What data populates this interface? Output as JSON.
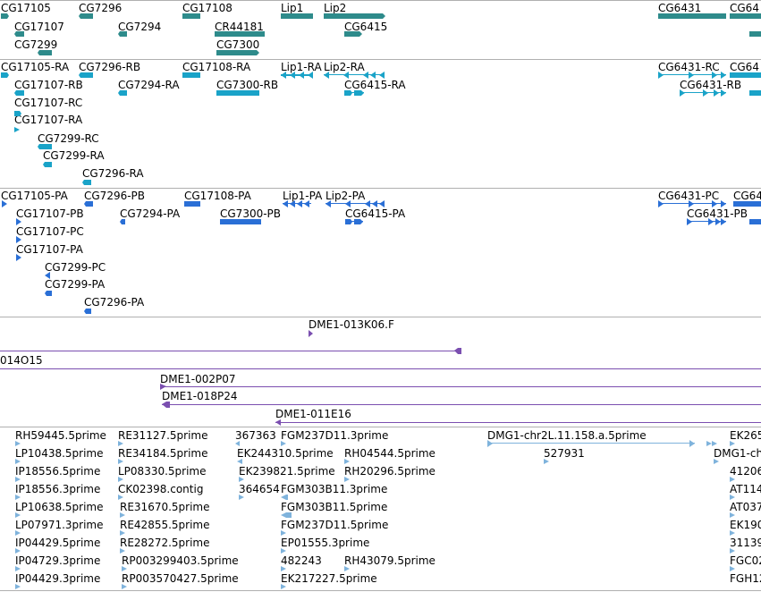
{
  "colors": {
    "gene": "#2e8b8b",
    "mrna": "#1aa3c8",
    "protein": "#2a6fd6",
    "clone": "#7b4fb0",
    "est": "#7fb3dc",
    "separator": "#b0b0b0"
  },
  "genes": {
    "labels": [
      "CG17105",
      "CG7296",
      "CG17108",
      "Lip1",
      "Lip2",
      "CG6431",
      "CG64",
      "CG17107",
      "CG7294",
      "CR44181",
      "CG6415",
      "CG7299",
      "CG7300"
    ]
  },
  "mrna": {
    "labels": [
      "CG17105-RA",
      "CG7296-RB",
      "CG17108-RA",
      "Lip1-RA",
      "Lip2-RA",
      "CG6431-RC",
      "CG64",
      "CG17107-RB",
      "CG7294-RA",
      "CG7300-RB",
      "CG6415-RA",
      "CG6431-RB",
      "CG17107-RC",
      "CG17107-RA",
      "CG7299-RC",
      "CG7299-RA",
      "CG7296-RA"
    ]
  },
  "proteins": {
    "labels": [
      "CG17105-PA",
      "CG7296-PB",
      "CG17108-PA",
      "Lip1-PA",
      "Lip2-PA",
      "CG6431-PC",
      "CG64",
      "CG17107-PB",
      "CG7294-PA",
      "CG7300-PB",
      "CG6415-PA",
      "CG6431-PB",
      "CG17107-PC",
      "CG17107-PA",
      "CG7299-PC",
      "CG7299-PA",
      "CG7296-PA"
    ]
  },
  "clones": {
    "labels": [
      "DME1-013K06.F",
      "014O15",
      "DME1-002P07",
      "DME1-018P24",
      "DME1-011E16"
    ]
  },
  "ests": {
    "labels": [
      "RH59445.5prime",
      "RE31127.5prime",
      "367363",
      "FGM237D11.3prime",
      "DMG1-chr2L.11.158.a.5prime",
      "EK265",
      "LP10438.5prime",
      "RE34184.5prime",
      "EK244310.5prime",
      "RH04544.5prime",
      "527931",
      "DMG1-ch",
      "IP18556.5prime",
      "LP08330.5prime",
      "EK239821.5prime",
      "RH20296.5prime",
      "41206",
      "IP18556.3prime",
      "CK02398.contig",
      "364654",
      "FGM303B11.3prime",
      "AT114",
      "LP10638.5prime",
      "RE31670.5prime",
      "FGM303B11.5prime",
      "AT037",
      "LP07971.3prime",
      "RE42855.5prime",
      "FGM237D11.5prime",
      "EK190",
      "IP04429.5prime",
      "RE28272.5prime",
      "EP01555.3prime",
      "31139",
      "IP04729.3prime",
      "RP003299403.5prime",
      "482243",
      "RH43079.5prime",
      "FGC02",
      "IP04429.3prime",
      "RP003570427.5prime",
      "EK217227.5prime",
      "FGH12"
    ]
  }
}
